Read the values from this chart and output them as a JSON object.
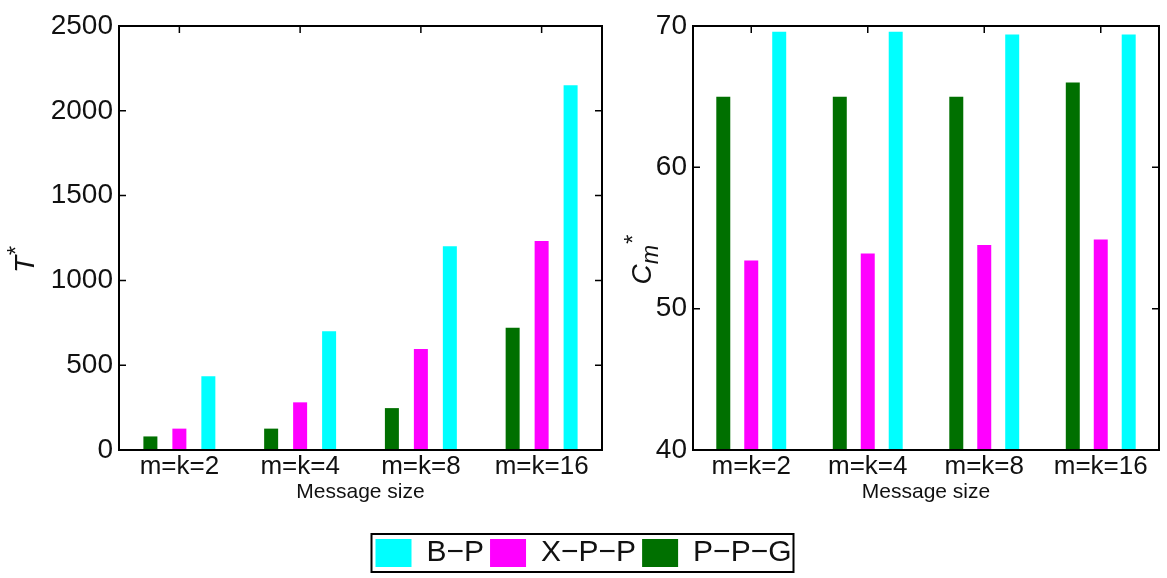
{
  "chart_data": [
    {
      "type": "bar",
      "categories": [
        "m=k=2",
        "m=k=4",
        "m=k=8",
        "m=k=16"
      ],
      "xlabel": "Message size",
      "ylabel": "T$^{*}$",
      "ylim": [
        0,
        2500
      ],
      "yticks": [
        0,
        500,
        1000,
        1500,
        2000,
        2500
      ],
      "legend": "bottom",
      "series": [
        {
          "name": "P−P−G",
          "color": "#007000",
          "values": [
            80,
            126,
            247,
            721
          ]
        },
        {
          "name": "X−P−P",
          "color": "#ff00ff",
          "values": [
            126,
            281,
            595,
            1233
          ]
        },
        {
          "name": "B−P",
          "color": "#00ffff",
          "values": [
            435,
            700,
            1201,
            2151
          ]
        }
      ]
    },
    {
      "type": "bar",
      "categories": [
        "m=k=2",
        "m=k=4",
        "m=k=8",
        "m=k=16"
      ],
      "xlabel": "Message size",
      "ylabel": "C$_{m}$$^{*}$",
      "ylim": [
        40,
        70
      ],
      "yticks": [
        40,
        50,
        60,
        70
      ],
      "series": [
        {
          "color": "#007000",
          "values": [
            65.0,
            65.0,
            65.0,
            66.0
          ]
        },
        {
          "color": "#ff00ff",
          "values": [
            53.4,
            53.9,
            54.5,
            54.9
          ]
        },
        {
          "color": "#00ffff",
          "values": [
            69.6,
            69.6,
            69.4,
            69.4
          ]
        }
      ]
    }
  ]
}
